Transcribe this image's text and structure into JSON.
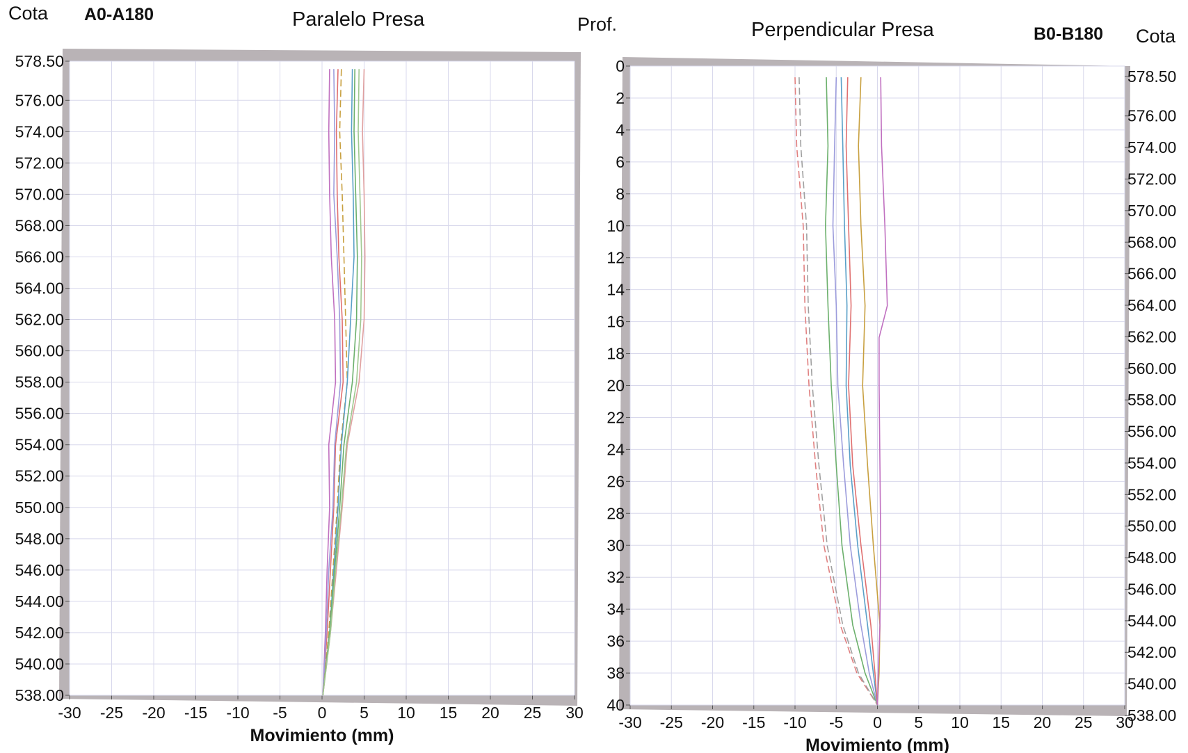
{
  "header": {
    "left_cota": "Cota",
    "left_code": "A0-A180",
    "left_title": "Paralelo Presa",
    "prof": "Prof.",
    "right_title": "Perpendicular Presa",
    "right_code": "B0-B180",
    "right_cota": "Cota"
  },
  "chart_data": [
    {
      "type": "line",
      "title": "Paralelo Presa",
      "xlabel": "Movimiento (mm)",
      "ylabel": "Cota",
      "xlim": [
        -30,
        30
      ],
      "ylim": [
        538.0,
        578.5
      ],
      "x_ticks": [
        -30,
        -25,
        -20,
        -15,
        -10,
        -5,
        0,
        5,
        10,
        15,
        20,
        25,
        30
      ],
      "y_ticks": [
        "578.50",
        "576.00",
        "574.00",
        "572.00",
        "570.00",
        "568.00",
        "566.00",
        "564.00",
        "562.00",
        "560.00",
        "558.00",
        "556.00",
        "554.00",
        "552.00",
        "550.00",
        "548.00",
        "546.00",
        "544.00",
        "542.00",
        "540.00",
        "538.00"
      ],
      "grid": true,
      "series": [
        {
          "color": "#c070c0",
          "dash": false,
          "points": [
            [
              0.9,
              578
            ],
            [
              0.8,
              574
            ],
            [
              0.9,
              570
            ],
            [
              1.1,
              566
            ],
            [
              1.5,
              562
            ],
            [
              1.6,
              558
            ],
            [
              0.8,
              554
            ],
            [
              0.9,
              550
            ],
            [
              0.6,
              546
            ],
            [
              0.4,
              542
            ],
            [
              0.1,
              538
            ]
          ]
        },
        {
          "color": "#e07070",
          "dash": false,
          "points": [
            [
              1.9,
              578
            ],
            [
              1.7,
              574
            ],
            [
              1.8,
              570
            ],
            [
              2.0,
              566
            ],
            [
              2.4,
              562
            ],
            [
              2.5,
              558
            ],
            [
              1.6,
              554
            ],
            [
              1.4,
              550
            ],
            [
              1.0,
              546
            ],
            [
              0.6,
              542
            ],
            [
              0.1,
              538
            ]
          ]
        },
        {
          "color": "#9c9cdc",
          "dash": false,
          "points": [
            [
              1.4,
              578
            ],
            [
              1.5,
              574
            ],
            [
              1.4,
              570
            ],
            [
              1.8,
              566
            ],
            [
              2.1,
              562
            ],
            [
              2.2,
              558
            ],
            [
              1.5,
              554
            ],
            [
              1.3,
              550
            ],
            [
              0.8,
              546
            ],
            [
              0.5,
              542
            ],
            [
              0.1,
              538
            ]
          ]
        },
        {
          "color": "#c8a040",
          "dash": true,
          "points": [
            [
              2.3,
              578
            ],
            [
              2.1,
              574
            ],
            [
              2.4,
              570
            ],
            [
              2.6,
              566
            ],
            [
              2.8,
              562
            ],
            [
              3.0,
              558
            ],
            [
              2.2,
              554
            ],
            [
              1.8,
              550
            ],
            [
              1.3,
              546
            ],
            [
              0.8,
              542
            ],
            [
              0.1,
              538
            ]
          ]
        },
        {
          "color": "#5aa0c8",
          "dash": false,
          "points": [
            [
              3.6,
              578
            ],
            [
              3.5,
              574
            ],
            [
              3.7,
              570
            ],
            [
              3.8,
              566
            ],
            [
              3.4,
              562
            ],
            [
              3.0,
              558
            ],
            [
              2.3,
              554
            ],
            [
              1.9,
              550
            ],
            [
              1.4,
              546
            ],
            [
              0.9,
              542
            ],
            [
              0.1,
              538
            ]
          ]
        },
        {
          "color": "#6cb06c",
          "dash": false,
          "points": [
            [
              3.9,
              578
            ],
            [
              3.8,
              574
            ],
            [
              4.0,
              570
            ],
            [
              4.2,
              566
            ],
            [
              4.1,
              562
            ],
            [
              3.6,
              558
            ],
            [
              2.6,
              554
            ],
            [
              2.1,
              550
            ],
            [
              1.5,
              546
            ],
            [
              0.9,
              542
            ],
            [
              0.1,
              538
            ]
          ]
        },
        {
          "color": "#e0a0a0",
          "dash": false,
          "points": [
            [
              5.0,
              578
            ],
            [
              4.8,
              574
            ],
            [
              5.0,
              570
            ],
            [
              5.1,
              566
            ],
            [
              5.0,
              562
            ],
            [
              4.4,
              558
            ],
            [
              3.0,
              554
            ],
            [
              2.4,
              550
            ],
            [
              1.7,
              546
            ],
            [
              1.0,
              542
            ],
            [
              0.1,
              538
            ]
          ]
        },
        {
          "color": "#a0c890",
          "dash": false,
          "points": [
            [
              4.4,
              578
            ],
            [
              4.3,
              574
            ],
            [
              4.5,
              570
            ],
            [
              4.7,
              566
            ],
            [
              4.6,
              562
            ],
            [
              4.1,
              558
            ],
            [
              2.9,
              554
            ],
            [
              2.3,
              550
            ],
            [
              1.6,
              546
            ],
            [
              1.0,
              542
            ],
            [
              0.1,
              538
            ]
          ]
        }
      ]
    },
    {
      "type": "line",
      "title": "Perpendicular Presa",
      "xlabel": "Movimiento (mm)",
      "ylabel": "Prof.",
      "y2label": "Cota",
      "xlim": [
        -30,
        30
      ],
      "ylim": [
        0,
        40
      ],
      "x_ticks": [
        -30,
        -25,
        -20,
        -15,
        -10,
        -5,
        0,
        5,
        10,
        15,
        20,
        25,
        30
      ],
      "prof_ticks": [
        0,
        2,
        4,
        6,
        8,
        10,
        12,
        14,
        16,
        18,
        20,
        22,
        24,
        26,
        28,
        30,
        32,
        34,
        36,
        38,
        40
      ],
      "cota_ticks": [
        "578.50",
        "576.00",
        "574.00",
        "572.00",
        "570.00",
        "568.00",
        "566.00",
        "564.00",
        "562.00",
        "560.00",
        "558.00",
        "556.00",
        "554.00",
        "552.00",
        "550.00",
        "548.00",
        "546.00",
        "544.00",
        "542.00",
        "540.00",
        "538.00"
      ],
      "grid": true,
      "series": [
        {
          "color": "#e08080",
          "dash": true,
          "points": [
            [
              -10.0,
              0.7
            ],
            [
              -9.8,
              5
            ],
            [
              -9.0,
              10
            ],
            [
              -8.8,
              15
            ],
            [
              -8.3,
              20
            ],
            [
              -7.5,
              25
            ],
            [
              -6.5,
              30
            ],
            [
              -4.5,
              35
            ],
            [
              -2.5,
              38
            ],
            [
              0,
              40
            ]
          ]
        },
        {
          "color": "#a0a0a0",
          "dash": true,
          "points": [
            [
              -9.5,
              0.7
            ],
            [
              -9.3,
              5
            ],
            [
              -8.6,
              10
            ],
            [
              -8.4,
              15
            ],
            [
              -7.9,
              20
            ],
            [
              -7.1,
              25
            ],
            [
              -6.1,
              30
            ],
            [
              -4.2,
              35
            ],
            [
              -2.3,
              38
            ],
            [
              0,
              40
            ]
          ]
        },
        {
          "color": "#6cb06c",
          "dash": false,
          "points": [
            [
              -6.2,
              0.7
            ],
            [
              -6.0,
              5
            ],
            [
              -6.3,
              10
            ],
            [
              -6.0,
              15
            ],
            [
              -5.6,
              20
            ],
            [
              -5.0,
              25
            ],
            [
              -4.3,
              30
            ],
            [
              -3.0,
              35
            ],
            [
              -1.5,
              38
            ],
            [
              0,
              40
            ]
          ]
        },
        {
          "color": "#9c9cdc",
          "dash": false,
          "points": [
            [
              -5.0,
              0.7
            ],
            [
              -5.2,
              5
            ],
            [
              -5.4,
              10
            ],
            [
              -5.0,
              15
            ],
            [
              -4.8,
              20
            ],
            [
              -4.1,
              25
            ],
            [
              -3.3,
              30
            ],
            [
              -2.0,
              35
            ],
            [
              -1.0,
              38
            ],
            [
              0,
              40
            ]
          ]
        },
        {
          "color": "#5aa0c8",
          "dash": false,
          "points": [
            [
              -4.4,
              0.7
            ],
            [
              -4.2,
              5
            ],
            [
              -4.0,
              10
            ],
            [
              -3.7,
              15
            ],
            [
              -3.8,
              20
            ],
            [
              -3.3,
              25
            ],
            [
              -2.4,
              30
            ],
            [
              -1.2,
              35
            ],
            [
              -0.5,
              38
            ],
            [
              0,
              40
            ]
          ]
        },
        {
          "color": "#e07070",
          "dash": false,
          "points": [
            [
              -3.6,
              0.7
            ],
            [
              -3.8,
              5
            ],
            [
              -3.5,
              10
            ],
            [
              -3.2,
              15
            ],
            [
              -3.5,
              20
            ],
            [
              -3.0,
              25
            ],
            [
              -2.0,
              30
            ],
            [
              -0.8,
              35
            ],
            [
              -0.3,
              38
            ],
            [
              0,
              40
            ]
          ]
        },
        {
          "color": "#c8a040",
          "dash": false,
          "points": [
            [
              -2.0,
              0.7
            ],
            [
              -2.3,
              5
            ],
            [
              -2.0,
              10
            ],
            [
              -1.5,
              15
            ],
            [
              -1.8,
              20
            ],
            [
              -1.2,
              25
            ],
            [
              -0.5,
              30
            ],
            [
              0.3,
              35
            ],
            [
              0.2,
              38
            ],
            [
              0,
              40
            ]
          ]
        },
        {
          "color": "#c070c0",
          "dash": false,
          "points": [
            [
              0.4,
              0.7
            ],
            [
              0.5,
              5
            ],
            [
              0.9,
              10
            ],
            [
              1.2,
              15
            ],
            [
              0.2,
              17
            ],
            [
              0.2,
              20
            ],
            [
              0.3,
              25
            ],
            [
              0.4,
              30
            ],
            [
              0.3,
              35
            ],
            [
              0.1,
              38
            ],
            [
              0,
              40
            ]
          ]
        }
      ]
    }
  ]
}
